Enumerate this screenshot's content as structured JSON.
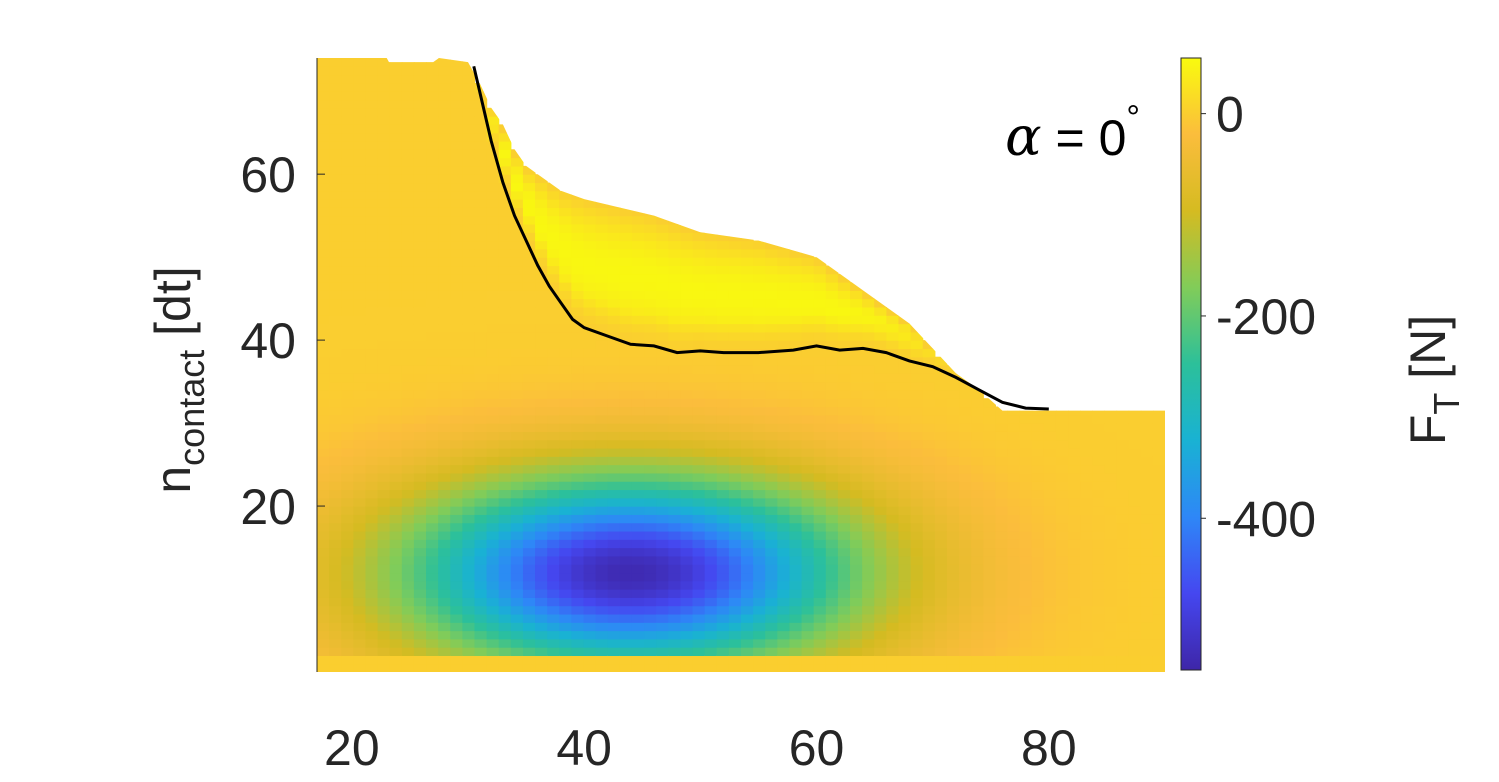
{
  "chart_data": {
    "type": "heatmap",
    "title": "",
    "xlabel": "",
    "ylabel": "n",
    "ylabel_subscript": "contact",
    "ylabel_suffix": " [dt]",
    "xlim": [
      17,
      90
    ],
    "ylim": [
      0,
      74
    ],
    "x_ticks": [
      20,
      40,
      60,
      80
    ],
    "y_ticks": [
      20,
      40,
      60
    ],
    "grid": false,
    "colorbar": {
      "label": "F",
      "label_subscript": "T",
      "label_suffix": " [N]",
      "range": [
        -550,
        55
      ],
      "ticks": [
        0,
        -200,
        -400
      ],
      "colormap": "parula"
    },
    "annotation": {
      "symbol": "α",
      "text": " = 0",
      "degree": "°",
      "location": "top-right"
    },
    "region_top_boundary": {
      "x": [
        17,
        23,
        23.2,
        27,
        27.5,
        30,
        31,
        32,
        33,
        34,
        35,
        36,
        37,
        38,
        40,
        43,
        46,
        50,
        55,
        60,
        65,
        68,
        70,
        72,
        74,
        76,
        90
      ],
      "y": [
        74,
        74,
        73.5,
        73.5,
        74,
        73.5,
        71,
        68,
        66,
        63,
        61,
        60,
        59,
        58,
        57,
        56,
        55,
        53,
        52,
        50,
        45,
        42,
        39,
        36,
        34,
        31.5,
        31.5
      ]
    },
    "contour_zero": {
      "x": [
        30.5,
        31,
        31.5,
        32,
        33,
        34,
        35,
        36,
        37,
        38,
        39,
        40,
        42,
        44,
        46,
        48,
        50,
        52,
        55,
        58,
        60,
        62,
        64,
        66,
        68,
        70,
        72,
        74,
        76,
        78,
        80
      ],
      "y": [
        73,
        70,
        67,
        64,
        59,
        55,
        52,
        49,
        46.5,
        44.5,
        42.5,
        41.5,
        40.5,
        39.5,
        39.3,
        38.5,
        38.7,
        38.5,
        38.5,
        38.8,
        39.3,
        38.8,
        39,
        38.5,
        37.5,
        36.8,
        35.5,
        34,
        32.5,
        31.8,
        31.7
      ]
    },
    "minimum": {
      "x": 44,
      "y": 12,
      "value": -540
    },
    "plateau_value": 0,
    "peak_value": 50
  }
}
